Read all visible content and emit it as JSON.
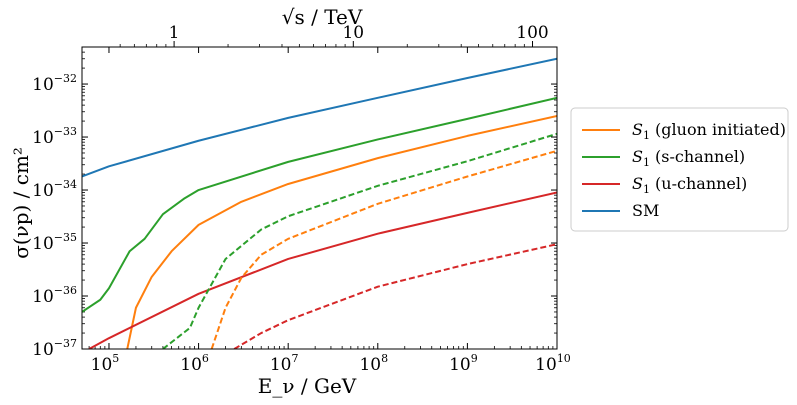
{
  "chart_data": {
    "type": "line",
    "log_x": true,
    "log_y": true,
    "xlabel": "E_ν / GeV",
    "ylabel": "σ(νp) / cm²",
    "top_xlabel": "√s / TeV",
    "xlim": [
      50000,
      10000000000
    ],
    "ylim": [
      1e-37,
      5e-32
    ],
    "x_ticks": [
      {
        "base": "10",
        "exp": "5"
      },
      {
        "base": "10",
        "exp": "6"
      },
      {
        "base": "10",
        "exp": "7"
      },
      {
        "base": "10",
        "exp": "8"
      },
      {
        "base": "10",
        "exp": "9"
      },
      {
        "base": "10",
        "exp": "10"
      }
    ],
    "y_ticks": [
      {
        "base": "10",
        "exp": "−37"
      },
      {
        "base": "10",
        "exp": "−36"
      },
      {
        "base": "10",
        "exp": "−35"
      },
      {
        "base": "10",
        "exp": "−34"
      },
      {
        "base": "10",
        "exp": "−33"
      },
      {
        "base": "10",
        "exp": "−32"
      }
    ],
    "top_ticks": [
      "1",
      "10",
      "100"
    ],
    "top_tick_values_tev": [
      1,
      10,
      100
    ],
    "legend_position": "right",
    "series": [
      {
        "name": "S₁ (gluon initiated)",
        "legend_base": "S",
        "legend_sub": "1",
        "legend_rest": " (gluon initiated)",
        "color": "#ff7f0e",
        "dashed": false,
        "points": [
          [
            160000,
            1e-37
          ],
          [
            200000,
            6e-37
          ],
          [
            300000,
            2.3e-36
          ],
          [
            500000,
            7e-36
          ],
          [
            1000000,
            2.2e-35
          ],
          [
            3000000,
            6e-35
          ],
          [
            10000000,
            1.3e-34
          ],
          [
            100000000,
            4e-34
          ],
          [
            1000000000,
            1.05e-33
          ],
          [
            10000000000,
            2.5e-33
          ]
        ]
      },
      {
        "name": "S₁ (s-channel)",
        "legend_base": "S",
        "legend_sub": "1",
        "legend_rest": " (s-channel)",
        "color": "#2ca02c",
        "dashed": false,
        "points": [
          [
            50000,
            5e-37
          ],
          [
            80000,
            8.5e-37
          ],
          [
            100000,
            1.4e-36
          ],
          [
            170000,
            7e-36
          ],
          [
            250000,
            1.2e-35
          ],
          [
            400000,
            3.5e-35
          ],
          [
            700000,
            7e-35
          ],
          [
            1000000,
            1e-34
          ],
          [
            10000000,
            3.4e-34
          ],
          [
            100000000,
            9e-34
          ],
          [
            1000000000,
            2.2e-33
          ],
          [
            10000000000,
            5.5e-33
          ]
        ]
      },
      {
        "name": "S₁ (u-channel)",
        "legend_base": "S",
        "legend_sub": "1",
        "legend_rest": " (u-channel)",
        "color": "#d62728",
        "dashed": false,
        "points": [
          [
            60000,
            1e-37
          ],
          [
            100000,
            1.6e-37
          ],
          [
            1000000,
            1.1e-36
          ],
          [
            10000000,
            5e-36
          ],
          [
            100000000,
            1.5e-35
          ],
          [
            1000000000,
            3.7e-35
          ],
          [
            10000000000,
            9e-35
          ]
        ]
      },
      {
        "name": "SM",
        "legend_base": "SM",
        "legend_sub": "",
        "legend_rest": "",
        "color": "#1f77b4",
        "dashed": false,
        "points": [
          [
            50000,
            1.8e-34
          ],
          [
            100000,
            2.8e-34
          ],
          [
            1000000,
            8.5e-34
          ],
          [
            10000000,
            2.3e-33
          ],
          [
            100000000,
            5.5e-33
          ],
          [
            1000000000,
            1.3e-32
          ],
          [
            10000000000,
            3e-32
          ]
        ]
      },
      {
        "name": "S₁ (s-channel) dashed",
        "color": "#2ca02c",
        "dashed": true,
        "points": [
          [
            400000,
            1e-37
          ],
          [
            800000,
            2.5e-37
          ],
          [
            1000000,
            6e-37
          ],
          [
            2000000,
            5e-36
          ],
          [
            5000000,
            1.8e-35
          ],
          [
            10000000,
            3.2e-35
          ],
          [
            100000000,
            1.2e-34
          ],
          [
            1000000000,
            3.5e-34
          ],
          [
            10000000000,
            1.15e-33
          ]
        ]
      },
      {
        "name": "S₁ (gluon initiated) dashed",
        "color": "#ff7f0e",
        "dashed": true,
        "points": [
          [
            1400000,
            1e-37
          ],
          [
            2000000,
            6e-37
          ],
          [
            3000000,
            2.2e-36
          ],
          [
            5000000,
            6e-36
          ],
          [
            10000000,
            1.2e-35
          ],
          [
            100000000,
            5.5e-35
          ],
          [
            1000000000,
            1.8e-34
          ],
          [
            10000000000,
            5.5e-34
          ]
        ]
      },
      {
        "name": "S₁ (u-channel) dashed",
        "color": "#d62728",
        "dashed": true,
        "points": [
          [
            2500000,
            1e-37
          ],
          [
            5000000,
            2e-37
          ],
          [
            10000000,
            3.5e-37
          ],
          [
            100000000,
            1.5e-36
          ],
          [
            1000000000,
            4e-36
          ],
          [
            10000000000,
            9.5e-36
          ]
        ]
      }
    ]
  }
}
